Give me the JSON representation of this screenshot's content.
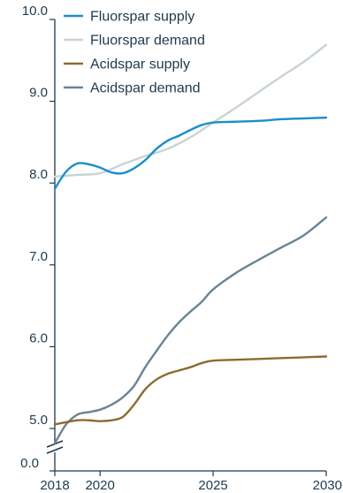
{
  "chart_data": {
    "type": "line",
    "title": "",
    "xlabel": "",
    "ylabel": "",
    "xlim": [
      2018,
      2030
    ],
    "ylim": [
      4.6,
      10.0
    ],
    "y_axis_break": true,
    "x_ticks": [
      {
        "value": 2018,
        "label": "2018"
      },
      {
        "value": 2020,
        "label": "2020"
      },
      {
        "value": 2025,
        "label": "2025"
      },
      {
        "value": 2030,
        "label": "2030"
      }
    ],
    "y_ticks": [
      {
        "value": 10.0,
        "label": "10.0"
      },
      {
        "value": 9.0,
        "label": "9.0"
      },
      {
        "value": 8.0,
        "label": "8.0"
      },
      {
        "value": 7.0,
        "label": "7.0"
      },
      {
        "value": 6.0,
        "label": "6.0"
      },
      {
        "value": 5.0,
        "label": "5.0"
      }
    ],
    "y_break_label": "0.0",
    "grid": false,
    "legend_position": "top-left",
    "series": [
      {
        "name": "Fluorspar supply",
        "color": "#1a8fc9",
        "x": [
          2018,
          2018.5,
          2019,
          2019.5,
          2020,
          2020.5,
          2021,
          2021.5,
          2022,
          2022.5,
          2023,
          2023.5,
          2024,
          2024.5,
          2025,
          2026,
          2027,
          2028,
          2029,
          2030
        ],
        "values": [
          7.93,
          8.14,
          8.24,
          8.23,
          8.19,
          8.13,
          8.12,
          8.18,
          8.28,
          8.42,
          8.52,
          8.58,
          8.65,
          8.71,
          8.74,
          8.75,
          8.76,
          8.78,
          8.79,
          8.8
        ]
      },
      {
        "name": "Fluorspar demand",
        "color": "#c9d3d6",
        "x": [
          2018,
          2019,
          2020,
          2021,
          2022,
          2023,
          2024,
          2025,
          2026,
          2027,
          2028,
          2029,
          2030
        ],
        "values": [
          8.08,
          8.1,
          8.12,
          8.23,
          8.33,
          8.42,
          8.56,
          8.74,
          8.92,
          9.11,
          9.3,
          9.48,
          9.69
        ]
      },
      {
        "name": "Acidspar supply",
        "color": "#8a6d2d",
        "x": [
          2018,
          2019,
          2019.5,
          2020,
          2020.5,
          2021,
          2021.5,
          2022,
          2022.5,
          2023,
          2023.5,
          2024,
          2024.5,
          2025,
          2026,
          2027,
          2028,
          2029,
          2030
        ],
        "values": [
          5.05,
          5.1,
          5.1,
          5.09,
          5.1,
          5.14,
          5.29,
          5.48,
          5.6,
          5.67,
          5.71,
          5.75,
          5.8,
          5.83,
          5.84,
          5.85,
          5.86,
          5.87,
          5.88
        ]
      },
      {
        "name": "Acidspar demand",
        "color": "#6b8393",
        "x": [
          2018,
          2018.5,
          2019,
          2019.5,
          2020,
          2020.5,
          2021,
          2021.5,
          2022,
          2022.5,
          2023,
          2023.5,
          2024,
          2024.5,
          2025,
          2026,
          2027,
          2028,
          2029,
          2030
        ],
        "values": [
          4.82,
          5.05,
          5.17,
          5.2,
          5.23,
          5.29,
          5.38,
          5.52,
          5.75,
          5.95,
          6.14,
          6.3,
          6.43,
          6.55,
          6.7,
          6.9,
          7.06,
          7.21,
          7.36,
          7.58
        ]
      }
    ]
  }
}
